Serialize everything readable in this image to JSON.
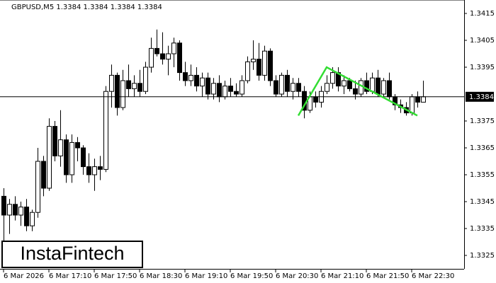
{
  "chart_data": {
    "type": "candlestick",
    "title": "GBPUSD,M5  1.3384 1.3384 1.3384 1.3384",
    "watermark": "InstaFintech",
    "categories": [
      "6 Mar 2026",
      null,
      null,
      null,
      null,
      null,
      null,
      null,
      "6 Mar 17:10",
      null,
      null,
      null,
      null,
      null,
      null,
      null,
      "6 Mar 17:50",
      null,
      null,
      null,
      null,
      null,
      null,
      null,
      "6 Mar 18:30",
      null,
      null,
      null,
      null,
      null,
      null,
      null,
      "6 Mar 19:10",
      null,
      null,
      null,
      null,
      null,
      null,
      null,
      "6 Mar 19:50",
      null,
      null,
      null,
      null,
      null,
      null,
      null,
      "6 Mar 20:30",
      null,
      null,
      null,
      null,
      null,
      null,
      null,
      "6 Mar 21:10",
      null,
      null,
      null,
      null,
      null,
      null,
      null,
      "6 Mar 21:50",
      null,
      null,
      null,
      null,
      null,
      null,
      null,
      "6 Mar 22:30",
      null,
      null
    ],
    "open": [
      1.3347,
      1.334,
      1.3344,
      1.334,
      1.3343,
      1.3336,
      1.3341,
      1.336,
      1.335,
      1.3373,
      1.3362,
      1.3368,
      1.3355,
      1.3367,
      1.3365,
      1.3358,
      1.3355,
      1.3358,
      1.3357,
      1.3386,
      1.3392,
      1.338,
      1.339,
      1.3387,
      1.3389,
      1.3386,
      1.3395,
      1.3402,
      1.34,
      1.3398,
      1.34,
      1.3404,
      1.3393,
      1.339,
      1.3392,
      1.3388,
      1.3391,
      1.3385,
      1.3389,
      1.3384,
      1.3388,
      1.3386,
      1.3385,
      1.339,
      1.3397,
      1.3398,
      1.3392,
      1.3401,
      1.339,
      1.3385,
      1.3392,
      1.3386,
      1.3389,
      1.3386,
      1.3379,
      1.3384,
      1.3382,
      1.3386,
      1.3389,
      1.3393,
      1.3388,
      1.339,
      1.3387,
      1.3385,
      1.339,
      1.3386,
      1.3391,
      1.3385,
      1.339,
      1.3384,
      1.3381,
      1.338,
      1.3378,
      1.3384,
      1.3382
    ],
    "high": [
      1.335,
      1.3346,
      1.3347,
      1.3345,
      1.3346,
      1.3342,
      1.3365,
      1.3362,
      1.3376,
      1.3375,
      1.3379,
      1.337,
      1.337,
      1.3369,
      1.3366,
      1.3363,
      1.3361,
      1.3362,
      1.3388,
      1.3396,
      1.3393,
      1.3394,
      1.3396,
      1.3392,
      1.3394,
      1.3397,
      1.3406,
      1.3409,
      1.3408,
      1.3403,
      1.3406,
      1.3405,
      1.3397,
      1.3396,
      1.3395,
      1.3393,
      1.3393,
      1.3391,
      1.3392,
      1.339,
      1.3391,
      1.3389,
      1.3392,
      1.3399,
      1.3405,
      1.3404,
      1.3403,
      1.3402,
      1.3392,
      1.3393,
      1.3394,
      1.3391,
      1.3391,
      1.3388,
      1.3386,
      1.3386,
      1.3388,
      1.3392,
      1.3395,
      1.3395,
      1.3392,
      1.3391,
      1.339,
      1.3391,
      1.3393,
      1.3393,
      1.3394,
      1.3391,
      1.3393,
      1.3385,
      1.3383,
      1.3382,
      1.3385,
      1.3386,
      1.339
    ],
    "low": [
      1.333,
      1.3333,
      1.3338,
      1.3336,
      1.3334,
      1.3334,
      1.3339,
      1.3347,
      1.3349,
      1.336,
      1.3358,
      1.3352,
      1.3352,
      1.336,
      1.3355,
      1.3352,
      1.3349,
      1.3353,
      1.3356,
      1.338,
      1.3377,
      1.3379,
      1.3384,
      1.3384,
      1.3384,
      1.3385,
      1.3393,
      1.3399,
      1.3396,
      1.3392,
      1.3395,
      1.339,
      1.3388,
      1.3388,
      1.3386,
      1.3384,
      1.3383,
      1.3383,
      1.3382,
      1.3383,
      1.3384,
      1.3384,
      1.3384,
      1.3389,
      1.3394,
      1.339,
      1.339,
      1.3388,
      1.3384,
      1.3384,
      1.3384,
      1.3383,
      1.3384,
      1.3376,
      1.3378,
      1.338,
      1.338,
      1.3385,
      1.3387,
      1.3386,
      1.3385,
      1.3386,
      1.3383,
      1.3384,
      1.3385,
      1.3385,
      1.3384,
      1.3384,
      1.3383,
      1.3379,
      1.3378,
      1.3377,
      1.3377,
      1.338,
      1.3382
    ],
    "close": [
      1.334,
      1.3344,
      1.334,
      1.3343,
      1.3336,
      1.3341,
      1.336,
      1.335,
      1.3373,
      1.3362,
      1.3368,
      1.3355,
      1.3367,
      1.3365,
      1.3358,
      1.3355,
      1.3358,
      1.3357,
      1.3386,
      1.3392,
      1.338,
      1.339,
      1.3387,
      1.3389,
      1.3386,
      1.3395,
      1.3402,
      1.34,
      1.3398,
      1.34,
      1.3404,
      1.3393,
      1.339,
      1.3392,
      1.3388,
      1.3391,
      1.3385,
      1.3389,
      1.3384,
      1.3388,
      1.3386,
      1.3385,
      1.339,
      1.3397,
      1.3398,
      1.3392,
      1.3401,
      1.339,
      1.3385,
      1.3392,
      1.3386,
      1.3389,
      1.3386,
      1.3379,
      1.3384,
      1.3382,
      1.3386,
      1.3389,
      1.3393,
      1.3388,
      1.339,
      1.3387,
      1.3385,
      1.339,
      1.3386,
      1.3391,
      1.3385,
      1.339,
      1.3384,
      1.3381,
      1.338,
      1.3378,
      1.3384,
      1.3382,
      1.3384
    ],
    "current_price": 1.3384,
    "pattern_line": {
      "color": "#33dd33",
      "index": [
        52,
        57,
        73
      ],
      "values": [
        1.3377,
        1.3395,
        1.3377
      ]
    },
    "ylim": [
      1.332,
      1.342
    ],
    "yticks": [
      1.3415,
      1.3405,
      1.3395,
      1.3375,
      1.3365,
      1.3355,
      1.3345,
      1.3335,
      1.3325
    ]
  }
}
